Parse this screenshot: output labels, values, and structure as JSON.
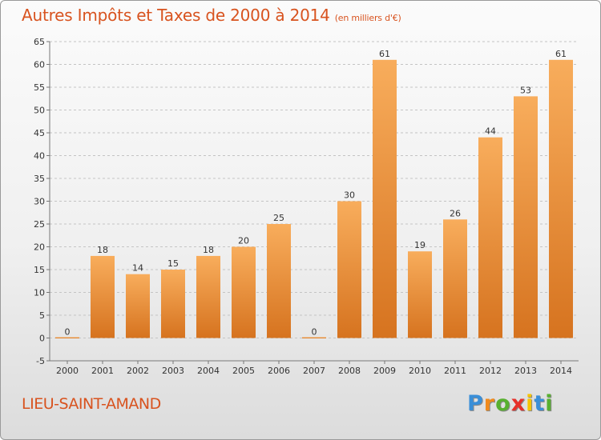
{
  "title": "Autres Impôts et Taxes de 2000 à 2014",
  "subtitle": "(en milliers d'€)",
  "location": "LIEU-SAINT-AMAND",
  "logo": {
    "letters": [
      "P",
      "r",
      "o",
      "x",
      "i",
      "t",
      "i"
    ],
    "colors": [
      "#3a8fd8",
      "#f08a1c",
      "#58b030",
      "#e6302a",
      "#f6c400",
      "#3a8fd8",
      "#58b030"
    ]
  },
  "colors": {
    "bar_light": "#f8ad5c",
    "bar_dark": "#d6731f",
    "accent": "#d8531f",
    "grid": "#c4c4c4"
  },
  "chart_data": {
    "type": "bar",
    "categories": [
      "2000",
      "2001",
      "2002",
      "2003",
      "2004",
      "2005",
      "2006",
      "2007",
      "2008",
      "2009",
      "2010",
      "2011",
      "2012",
      "2013",
      "2014"
    ],
    "values": [
      0,
      18,
      14,
      15,
      18,
      20,
      25,
      0,
      30,
      61,
      19,
      26,
      44,
      53,
      61
    ],
    "title": "Autres Impôts et Taxes de 2000 à 2014",
    "ylim": [
      -5,
      65
    ],
    "yticks": [
      -5,
      0,
      5,
      10,
      15,
      20,
      25,
      30,
      35,
      40,
      45,
      50,
      55,
      60,
      65
    ],
    "grid": true
  }
}
